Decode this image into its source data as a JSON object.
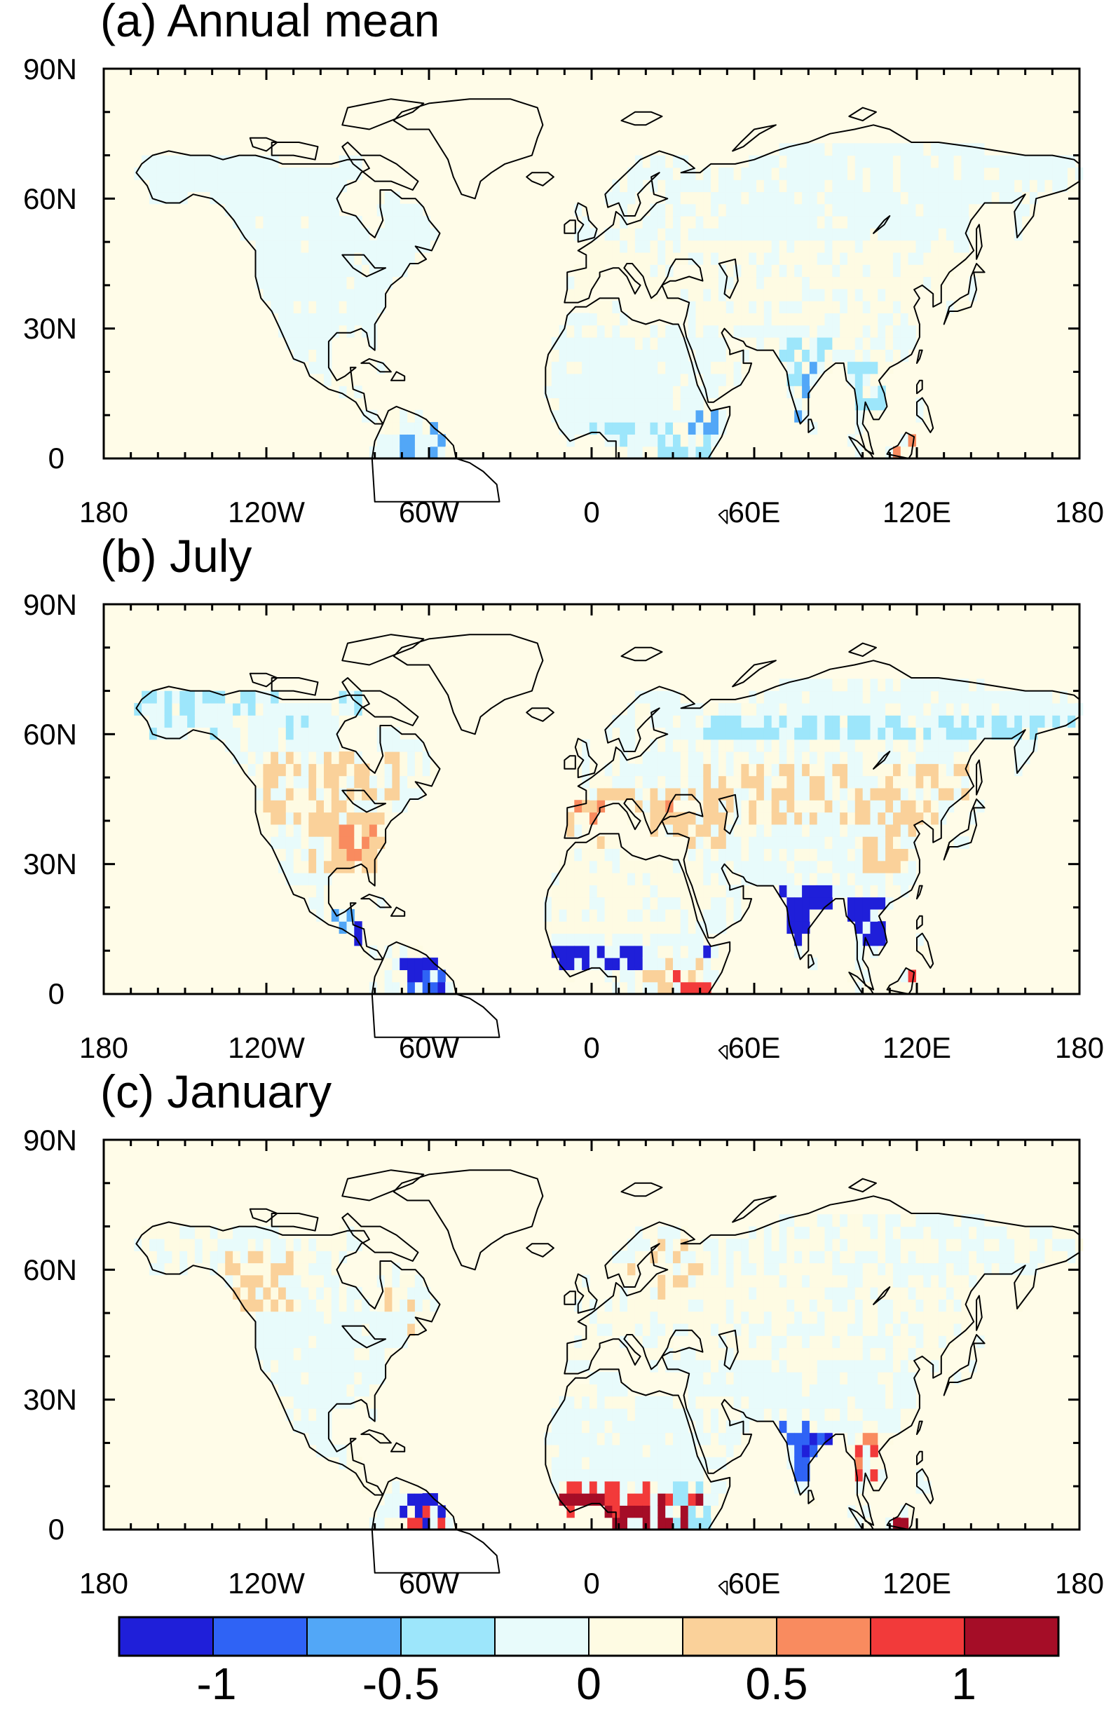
{
  "panels": [
    {
      "id": "annual",
      "title": "(a) Annual mean"
    },
    {
      "id": "july",
      "title": "(b) July"
    },
    {
      "id": "january",
      "title": "(c) January"
    }
  ],
  "axes": {
    "lat_ticks": [
      "90N",
      "60N",
      "30N",
      "0"
    ],
    "lon_ticks": [
      "180",
      "120W",
      "60W",
      "0",
      "60E",
      "120E",
      "180"
    ],
    "lon_range": [
      -180,
      180
    ],
    "lat_range": [
      0,
      90
    ]
  },
  "colorbar": {
    "labels": [
      "-1",
      "-0.5",
      "0",
      "0.5",
      "1"
    ],
    "label_values": [
      -1,
      -0.5,
      0,
      0.5,
      1
    ],
    "range": [
      -1.25,
      1.25
    ],
    "colors": [
      "#1f1fd9",
      "#2f63f5",
      "#52a7f7",
      "#9de6fb",
      "#e8fbfb",
      "#fefbe3",
      "#fad19a",
      "#f98b5f",
      "#f23a3a",
      "#a50d27"
    ]
  },
  "style": {
    "ocean_fill": "#fffce8"
  }
}
